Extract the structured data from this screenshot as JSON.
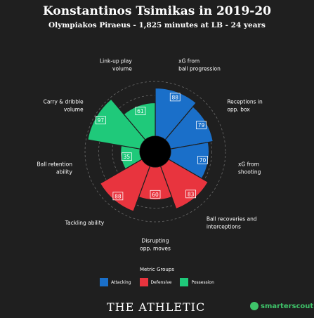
{
  "header": {
    "title": "Konstantinos Tsimikas in 2019-20",
    "subtitle": "Olympiakos Piraeus - 1,825 minutes at LB - 24 years"
  },
  "chart_data": {
    "type": "polar_bar",
    "title": "Konstantinos Tsimikas in 2019-20",
    "subtitle": "Olympiakos Piraeus - 1,825 minutes at LB - 24 years",
    "categories": [
      [
        "xG from",
        "ball progression"
      ],
      [
        "Receptions in",
        "opp. box"
      ],
      [
        "xG from",
        "shooting"
      ],
      [
        "Ball recoveries and",
        "interceptions"
      ],
      [
        "Disrupting",
        "opp. moves"
      ],
      [
        "Tackling ability"
      ],
      [
        "Ball retention",
        "ability"
      ],
      [
        "Carry & dribble",
        "volume"
      ],
      [
        "Link-up play",
        "volume"
      ]
    ],
    "values": [
      88,
      79,
      70,
      83,
      60,
      88,
      35,
      97,
      61
    ],
    "groups": [
      "Attacking",
      "Attacking",
      "Attacking",
      "Defensive",
      "Defensive",
      "Defensive",
      "Possession",
      "Possession",
      "Possession"
    ],
    "range": [
      0,
      100
    ],
    "grid": true
  },
  "legend": {
    "title": "Metric Groups",
    "items": [
      {
        "label": "Attacking",
        "color": "#1a6fc9"
      },
      {
        "label": "Defensive",
        "color": "#e8343e"
      },
      {
        "label": "Possession",
        "color": "#1fc97a"
      }
    ]
  },
  "footer": {
    "brand": "THE ATHLETIC",
    "scout": "smarterscout"
  }
}
